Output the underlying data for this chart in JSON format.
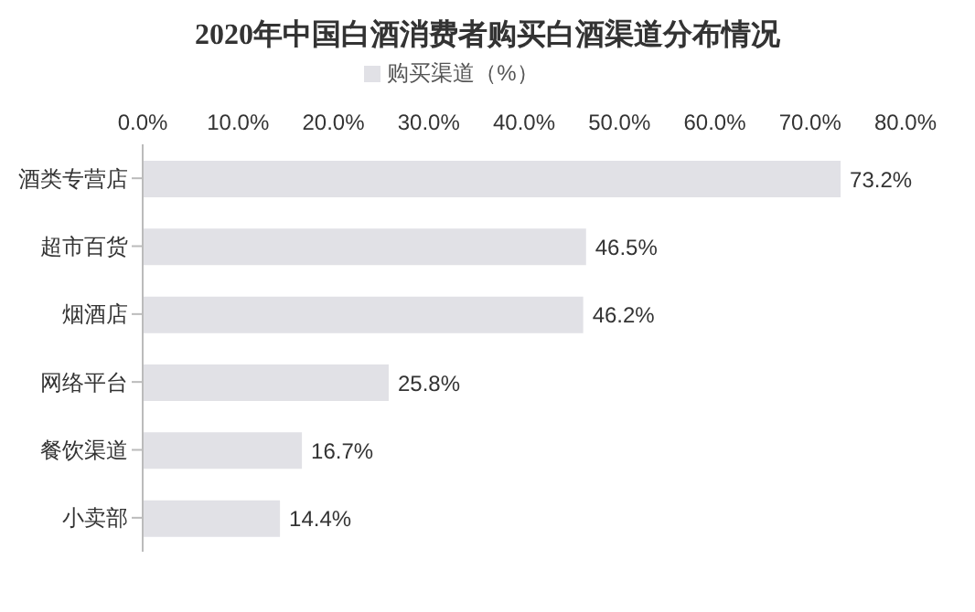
{
  "chart_data": {
    "type": "bar",
    "orientation": "horizontal",
    "title": "2020年中国白酒消费者购买白酒渠道分布情况",
    "categories": [
      "酒类专营店",
      "超市百货",
      "烟酒店",
      "网络平台",
      "餐饮渠道",
      "小卖部"
    ],
    "series": [
      {
        "name": "购买渠道（%）",
        "color": "#e1e1e6",
        "values": [
          73.2,
          46.5,
          46.2,
          25.8,
          16.7,
          14.4
        ],
        "value_labels": [
          "73.2%",
          "46.5%",
          "46.2%",
          "25.8%",
          "16.7%",
          "14.4%"
        ]
      }
    ],
    "xlim": [
      0,
      80
    ],
    "xticks": [
      {
        "value": 0,
        "label": "0.0%"
      },
      {
        "value": 10,
        "label": "10.0%"
      },
      {
        "value": 20,
        "label": "20.0%"
      },
      {
        "value": 30,
        "label": "30.0%"
      },
      {
        "value": 40,
        "label": "40.0%"
      },
      {
        "value": 50,
        "label": "50.0%"
      },
      {
        "value": 60,
        "label": "60.0%"
      },
      {
        "value": 70,
        "label": "70.0%"
      },
      {
        "value": 80,
        "label": "80.0%"
      }
    ],
    "legend": "top",
    "grid": false
  }
}
